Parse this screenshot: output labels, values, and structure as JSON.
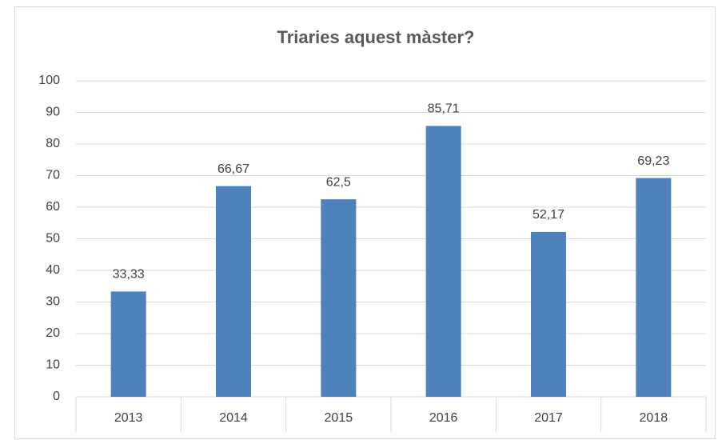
{
  "chart_data": {
    "type": "bar",
    "title": "Triaries aquest màster?",
    "categories": [
      "2013",
      "2014",
      "2015",
      "2016",
      "2017",
      "2018"
    ],
    "values": [
      33.33,
      66.67,
      62.5,
      85.71,
      52.17,
      69.23
    ],
    "value_labels": [
      "33,33",
      "66,67",
      "62,5",
      "85,71",
      "52,17",
      "69,23"
    ],
    "color": "#4f81bd",
    "ylim": [
      0,
      100
    ],
    "yticks": [
      0,
      10,
      20,
      30,
      40,
      50,
      60,
      70,
      80,
      90,
      100
    ],
    "grid": true
  }
}
